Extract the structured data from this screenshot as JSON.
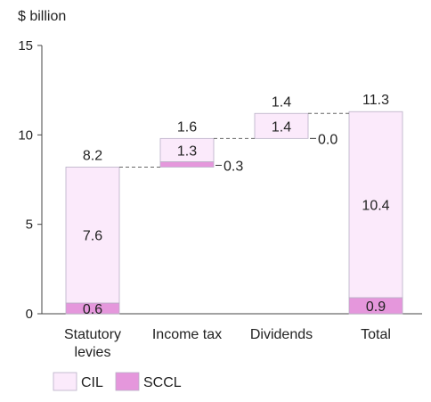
{
  "chart_data": {
    "type": "bar",
    "subtype": "waterfall-stacked",
    "unit_label": "$ billion",
    "ylim": [
      0,
      15
    ],
    "yticks": [
      "0",
      "5",
      "10",
      "15"
    ],
    "categories": [
      [
        "Statutory",
        "levies"
      ],
      [
        "Income tax"
      ],
      [
        "Dividends"
      ],
      [
        "Total"
      ]
    ],
    "bars": [
      {
        "base": 0,
        "segments": [
          {
            "series": "SCCL",
            "value": 0.6,
            "label": "0.6"
          },
          {
            "series": "CIL",
            "value": 7.6,
            "label": "7.6"
          }
        ],
        "total_label": "8.2"
      },
      {
        "base": 8.2,
        "segments": [
          {
            "series": "SCCL",
            "value": 0.3,
            "label": "0.3"
          },
          {
            "series": "CIL",
            "value": 1.3,
            "label": "1.3"
          }
        ],
        "total_label": "1.6"
      },
      {
        "base": 9.8,
        "segments": [
          {
            "series": "SCCL",
            "value": 0.0,
            "label": "0.0"
          },
          {
            "series": "CIL",
            "value": 1.4,
            "label": "1.4"
          }
        ],
        "total_label": "1.4"
      },
      {
        "base": 0,
        "segments": [
          {
            "series": "SCCL",
            "value": 0.9,
            "label": "0.9"
          },
          {
            "series": "CIL",
            "value": 10.4,
            "label": "10.4"
          }
        ],
        "total_label": "11.3"
      }
    ],
    "series": [
      {
        "name": "CIL",
        "color": "#fbeafb"
      },
      {
        "name": "SCCL",
        "color": "#e597dc"
      }
    ],
    "connectors": true,
    "grid": false,
    "legend_position": "bottom-left"
  }
}
